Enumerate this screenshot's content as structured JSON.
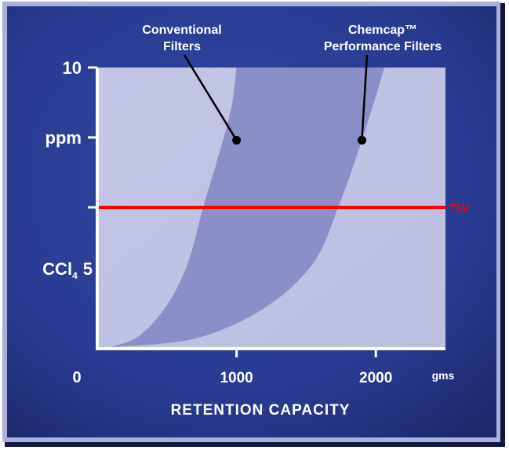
{
  "chart_data": {
    "type": "area",
    "title": "",
    "xlabel": "RETENTION CAPACITY",
    "x_unit": "gms",
    "ylabel_lines": [
      "ppm",
      "CCl4"
    ],
    "ylabel_main": "CCl",
    "ylabel_subscript": "4",
    "xlim": [
      0,
      2500
    ],
    "ylim": [
      0,
      10
    ],
    "x_ticks": [
      {
        "value": 1000,
        "label": "1000"
      },
      {
        "value": 2000,
        "label": "2000"
      }
    ],
    "x_origin_label": "0",
    "y_ticks": [
      {
        "value": 10,
        "label": "10"
      },
      {
        "value": 7.5,
        "label": "ppm"
      },
      {
        "value": 5,
        "label": "5"
      }
    ],
    "series": [
      {
        "name": "Conventional Filters",
        "label_lines": [
          "Conventional",
          "Filters"
        ],
        "curve": [
          [
            100,
            0
          ],
          [
            300,
            0.4
          ],
          [
            500,
            1.5
          ],
          [
            650,
            3.0
          ],
          [
            760,
            5.0
          ],
          [
            850,
            6.5
          ],
          [
            960,
            8.5
          ],
          [
            1000,
            10
          ]
        ]
      },
      {
        "name": "Chemcap™ Performance Filters",
        "label_lines": [
          "Chemcap™",
          "Performance Filters"
        ],
        "curve": [
          [
            100,
            0
          ],
          [
            700,
            0.3
          ],
          [
            1200,
            1.4
          ],
          [
            1550,
            3.0
          ],
          [
            1730,
            5.0
          ],
          [
            1860,
            6.8
          ],
          [
            1990,
            8.8
          ],
          [
            2060,
            10
          ]
        ]
      }
    ],
    "callouts": [
      {
        "series": "Conventional Filters",
        "point": [
          1000,
          7.4
        ]
      },
      {
        "series": "Chemcap™ Performance Filters",
        "point": [
          1900,
          7.4
        ]
      }
    ],
    "reference_line": {
      "label": "TLV",
      "y": 5,
      "color": "#ff0000"
    },
    "grid": false,
    "colors": {
      "frame": "#2b3c92",
      "plot_bg": "#c2c4e4",
      "band": "#8b8fc7",
      "text": "#ffffff",
      "tlv": "#ff0000"
    }
  }
}
